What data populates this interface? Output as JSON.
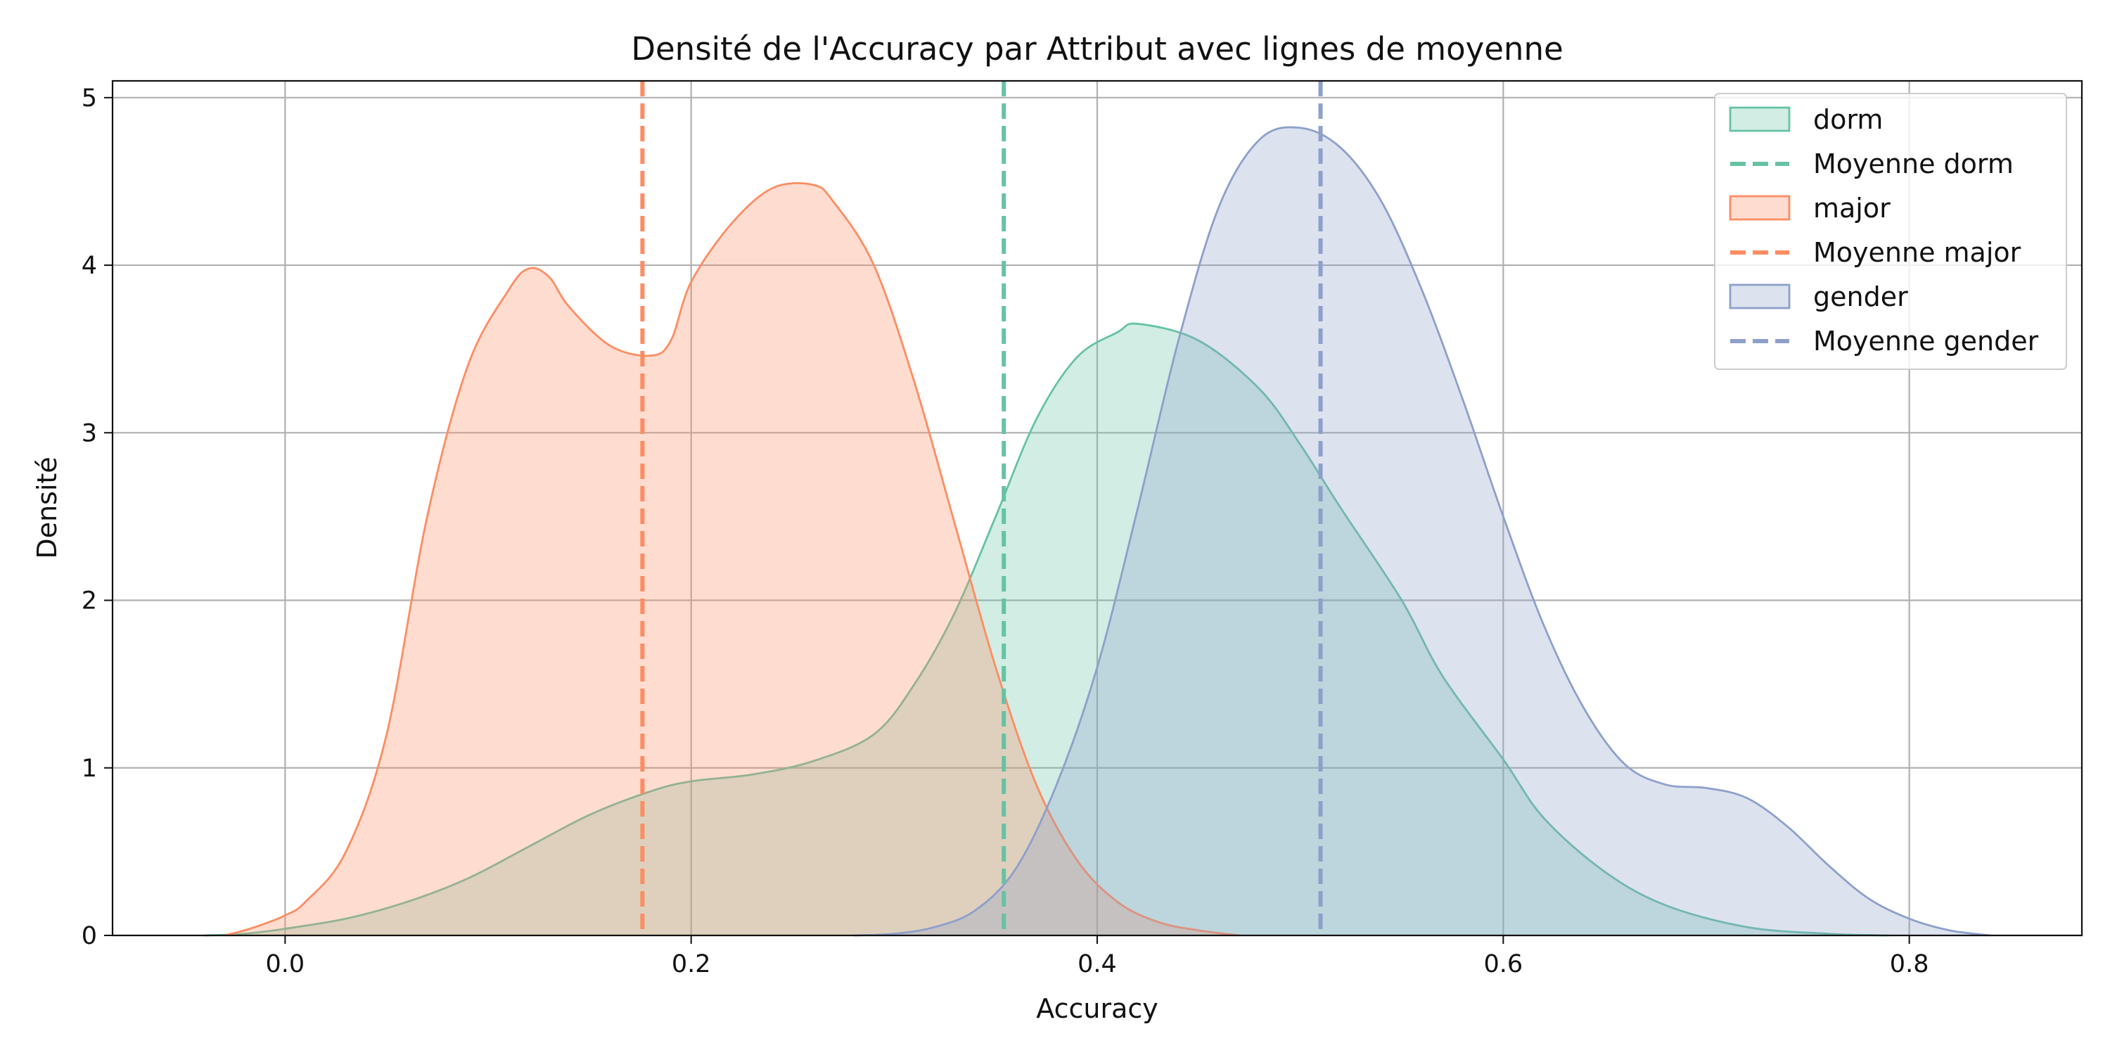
{
  "chart_data": {
    "type": "area",
    "title": "Densité de l'Accuracy par Attribut avec lignes de moyenne",
    "xlabel": "Accuracy",
    "ylabel": "Densité",
    "xlim": [
      -0.085,
      0.885
    ],
    "ylim": [
      0,
      5.1
    ],
    "xticks": [
      0.0,
      0.2,
      0.4,
      0.6,
      0.8
    ],
    "xtick_labels": [
      "0.0",
      "0.2",
      "0.4",
      "0.6",
      "0.8"
    ],
    "yticks": [
      0,
      1,
      2,
      3,
      4,
      5
    ],
    "ytick_labels": [
      "0",
      "1",
      "2",
      "3",
      "4",
      "5"
    ],
    "grid": true,
    "legend_position": "top-right",
    "series": [
      {
        "name": "dorm",
        "color": "#66c2a5",
        "mean": 0.354,
        "mean_label": "Moyenne dorm",
        "points": [
          [
            -0.04,
            0
          ],
          [
            -0.02,
            0.01
          ],
          [
            0.0,
            0.04
          ],
          [
            0.03,
            0.1
          ],
          [
            0.06,
            0.2
          ],
          [
            0.09,
            0.34
          ],
          [
            0.12,
            0.53
          ],
          [
            0.15,
            0.72
          ],
          [
            0.18,
            0.86
          ],
          [
            0.2,
            0.92
          ],
          [
            0.23,
            0.96
          ],
          [
            0.26,
            1.04
          ],
          [
            0.29,
            1.2
          ],
          [
            0.31,
            1.5
          ],
          [
            0.33,
            1.93
          ],
          [
            0.35,
            2.5
          ],
          [
            0.37,
            3.08
          ],
          [
            0.39,
            3.45
          ],
          [
            0.41,
            3.6
          ],
          [
            0.42,
            3.65
          ],
          [
            0.45,
            3.55
          ],
          [
            0.48,
            3.26
          ],
          [
            0.5,
            2.93
          ],
          [
            0.52,
            2.55
          ],
          [
            0.55,
            2.0
          ],
          [
            0.57,
            1.55
          ],
          [
            0.6,
            1.05
          ],
          [
            0.62,
            0.7
          ],
          [
            0.65,
            0.38
          ],
          [
            0.68,
            0.18
          ],
          [
            0.72,
            0.05
          ],
          [
            0.76,
            0.01
          ],
          [
            0.79,
            0
          ]
        ]
      },
      {
        "name": "major",
        "color": "#fc8d62",
        "mean": 0.176,
        "mean_label": "Moyenne major",
        "points": [
          [
            -0.03,
            0
          ],
          [
            -0.02,
            0.03
          ],
          [
            -0.01,
            0.07
          ],
          [
            0.0,
            0.12
          ],
          [
            0.01,
            0.2
          ],
          [
            0.03,
            0.5
          ],
          [
            0.05,
            1.2
          ],
          [
            0.07,
            2.5
          ],
          [
            0.09,
            3.4
          ],
          [
            0.11,
            3.85
          ],
          [
            0.12,
            3.98
          ],
          [
            0.13,
            3.93
          ],
          [
            0.14,
            3.75
          ],
          [
            0.16,
            3.52
          ],
          [
            0.18,
            3.46
          ],
          [
            0.19,
            3.55
          ],
          [
            0.2,
            3.9
          ],
          [
            0.22,
            4.25
          ],
          [
            0.24,
            4.46
          ],
          [
            0.26,
            4.48
          ],
          [
            0.27,
            4.38
          ],
          [
            0.29,
            4.0
          ],
          [
            0.31,
            3.3
          ],
          [
            0.33,
            2.45
          ],
          [
            0.35,
            1.6
          ],
          [
            0.37,
            0.9
          ],
          [
            0.39,
            0.45
          ],
          [
            0.41,
            0.2
          ],
          [
            0.43,
            0.08
          ],
          [
            0.45,
            0.03
          ],
          [
            0.47,
            0
          ]
        ]
      },
      {
        "name": "gender",
        "color": "#8da0cb",
        "mean": 0.51,
        "mean_label": "Moyenne gender",
        "points": [
          [
            0.28,
            0
          ],
          [
            0.3,
            0.01
          ],
          [
            0.32,
            0.05
          ],
          [
            0.34,
            0.15
          ],
          [
            0.36,
            0.4
          ],
          [
            0.38,
            0.9
          ],
          [
            0.4,
            1.6
          ],
          [
            0.42,
            2.55
          ],
          [
            0.44,
            3.55
          ],
          [
            0.46,
            4.35
          ],
          [
            0.48,
            4.75
          ],
          [
            0.5,
            4.82
          ],
          [
            0.52,
            4.7
          ],
          [
            0.54,
            4.38
          ],
          [
            0.56,
            3.85
          ],
          [
            0.58,
            3.2
          ],
          [
            0.6,
            2.5
          ],
          [
            0.62,
            1.85
          ],
          [
            0.64,
            1.35
          ],
          [
            0.66,
            1.02
          ],
          [
            0.68,
            0.9
          ],
          [
            0.7,
            0.88
          ],
          [
            0.72,
            0.82
          ],
          [
            0.74,
            0.65
          ],
          [
            0.76,
            0.42
          ],
          [
            0.78,
            0.22
          ],
          [
            0.8,
            0.1
          ],
          [
            0.82,
            0.03
          ],
          [
            0.84,
            0
          ]
        ]
      }
    ]
  }
}
